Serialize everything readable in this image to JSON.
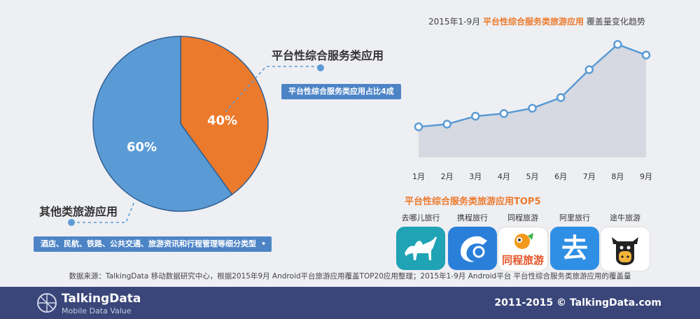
{
  "chart_data": [
    {
      "type": "pie",
      "slices": [
        {
          "name": "平台性综合服务类应用",
          "value": 40,
          "label": "40%",
          "color": "#ec7a2c"
        },
        {
          "name": "其他类旅游应用",
          "value": 60,
          "label": "60%",
          "color": "#5b9bd5"
        }
      ],
      "callout_right_tag": "平台性综合服务类应用占比4成",
      "callout_left_tag": "酒店、民航、铁路、公共交通、旅游资讯和行程管理等细分类型"
    },
    {
      "type": "area",
      "title_prefix": "2015年1-9月",
      "title_highlight": "平台性综合服务类旅游应用",
      "title_suffix": "覆盖量变化趋势",
      "categories": [
        "1月",
        "2月",
        "3月",
        "4月",
        "5月",
        "6月",
        "7月",
        "8月",
        "9月"
      ],
      "values": [
        23,
        25,
        31,
        33,
        37,
        45,
        66,
        85,
        77
      ],
      "ylim": [
        0,
        100
      ],
      "color": "#5b9bd5"
    }
  ],
  "apps": {
    "title": "平台性综合服务类旅游应用TOP5",
    "items": [
      {
        "name": "去哪儿旅行",
        "bg": "#1fa3b5"
      },
      {
        "name": "携程旅行",
        "bg": "#2a7fd9"
      },
      {
        "name": "同程旅游",
        "bg": "#ffffff",
        "logo_text": "同程旅游"
      },
      {
        "name": "阿里旅行",
        "bg": "#2f8fe4",
        "logo_text": "去"
      },
      {
        "name": "途牛旅游",
        "bg": "#ffffff"
      }
    ]
  },
  "source": "数据来源：TalkingData 移动数据研究中心，根据2015年9月 Android平台旅游应用覆盖TOP20应用整理；2015年1-9月 Android平台 平台性综合服务类旅游应用的覆盖量",
  "footer": {
    "brand": "TalkingData",
    "tagline": "Mobile Data Value",
    "copyright": "2011-2015 © TalkingData.com"
  }
}
